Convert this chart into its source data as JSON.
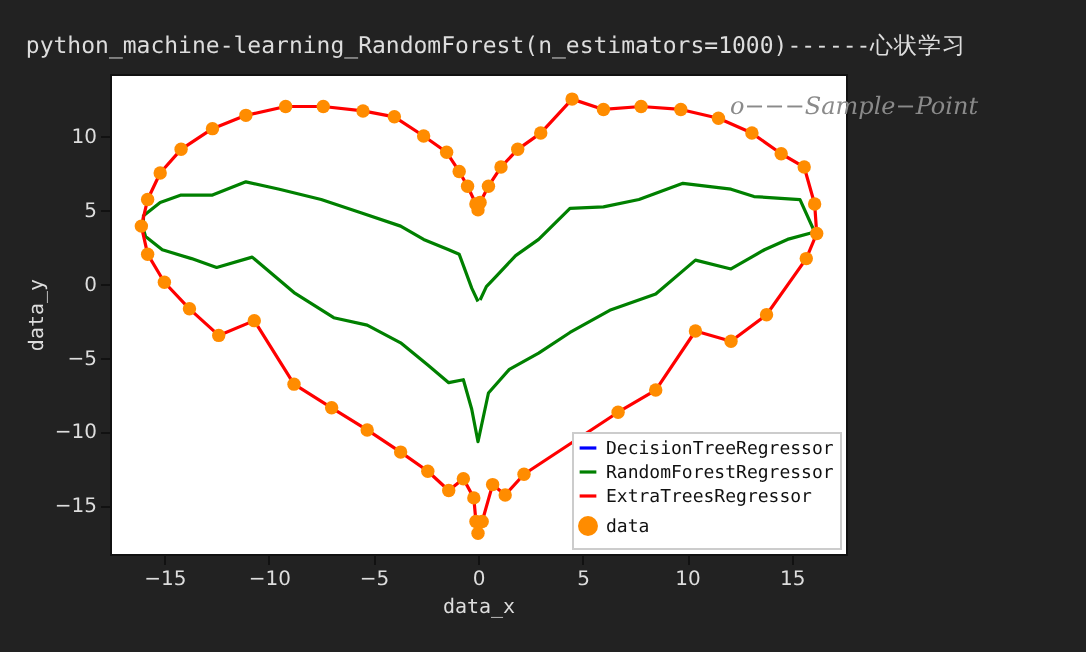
{
  "chart_data": {
    "type": "line",
    "title": "python_machine-learning_RandomForest(n_estimators=1000)------心状学习",
    "xlabel": "data_x",
    "ylabel": "data_y",
    "annotations": [
      "o−−−Sample−Point"
    ],
    "xlim": [
      -17.6,
      17.6
    ],
    "ylim": [
      -18.3,
      14.2
    ],
    "xticks": [
      -15,
      -10,
      -5,
      0,
      5,
      10,
      15
    ],
    "yticks": [
      -15,
      -10,
      -5,
      0,
      5,
      10
    ],
    "grid": false,
    "legend": "bottom right",
    "series": [
      {
        "name": "DecisionTreeRegressor",
        "type": "line",
        "color": "#0000ff",
        "values": [
          null,
          null
        ]
      },
      {
        "name": "RandomForestRegressor",
        "type": "line",
        "color": "#008000",
        "x": [
          0,
          -0.3,
          -0.9,
          -1.4,
          -2.6,
          -3.7,
          -5.6,
          -7.5,
          -9.5,
          -11.1,
          -12.7,
          -14.2,
          -15.2,
          -16,
          -16,
          -15.9,
          -15.1,
          -13.7,
          -12.5,
          -10.8,
          -8.8,
          -6.9,
          -5.3,
          -3.7,
          -2.4,
          -1.4,
          -0.7,
          -0.3,
          0,
          0.5,
          1.5,
          2.9,
          4.4,
          6.3,
          8.5,
          10.4,
          12.1,
          13.7,
          14.8,
          16.1,
          15.4,
          14.3,
          13.2,
          12.1,
          9.8,
          7.7,
          6,
          4.4,
          2.9,
          1.8,
          0.8,
          0.4,
          0.1
        ],
        "values": [
          -1.2,
          -0.3,
          2,
          2.3,
          3,
          3.9,
          4.8,
          5.7,
          6.4,
          6.9,
          6,
          6,
          5.5,
          4.6,
          3.7,
          3.2,
          2.3,
          1.7,
          1.1,
          1.8,
          -0.6,
          -2.3,
          -2.8,
          -4,
          -5.5,
          -6.7,
          -6.5,
          -8.5,
          -10.7,
          -7.4,
          -5.8,
          -4.7,
          -3.3,
          -1.8,
          -0.7,
          1.6,
          1,
          2.3,
          3,
          3.5,
          5.7,
          5.8,
          5.9,
          6.4,
          6.8,
          5.7,
          5.2,
          5.1,
          3,
          1.9,
          0.4,
          -0.2,
          -1.1
        ]
      },
      {
        "name": "ExtraTreesRegressor",
        "type": "line",
        "color": "#ff0000",
        "x": [
          -0.1,
          -0.5,
          -0.9,
          -1.5,
          -2.6,
          -4,
          -5.5,
          -7.4,
          -9.2,
          -11.1,
          -12.7,
          -14.2,
          -15.2,
          -15.8,
          -16.1,
          -15.8,
          -15,
          -13.8,
          -12.4,
          -10.7,
          -8.8,
          -7,
          -5.3,
          -3.7,
          -2.4,
          -1.4,
          -0.7,
          -0.2,
          -0.1,
          0,
          0.2,
          0.7,
          1.3,
          2.2,
          6.7,
          8.5,
          10.4,
          12.1,
          13.8,
          15.7,
          16.2,
          16.1,
          15.6,
          14.5,
          13.1,
          11.5,
          9.7,
          7.8,
          6,
          4.5,
          3,
          1.9,
          1.1,
          0.5,
          0.1,
          0
        ],
        "values": [
          5.4,
          6.6,
          7.6,
          8.9,
          10,
          11.3,
          11.7,
          12,
          12,
          11.4,
          10.5,
          9.1,
          7.5,
          5.7,
          3.9,
          2,
          0.1,
          -1.7,
          -3.5,
          -2.5,
          -6.8,
          -8.4,
          -9.9,
          -11.4,
          -12.7,
          -14,
          -13.2,
          -14.5,
          -16.1,
          -16.9,
          -16.1,
          -13.6,
          -14.3,
          -12.9,
          -8.7,
          -7.2,
          -3.2,
          -3.9,
          -2.1,
          1.7,
          3.4,
          5.4,
          7.9,
          8.8,
          10.2,
          11.2,
          11.8,
          12,
          11.8,
          12.5,
          10.2,
          9.1,
          7.9,
          6.6,
          5.5,
          5
        ]
      },
      {
        "name": "data",
        "type": "scatter",
        "marker": "circle",
        "color": "#ff8c00",
        "x": [
          -0.1,
          -0.5,
          -0.9,
          -1.5,
          -2.6,
          -4,
          -5.5,
          -7.4,
          -9.2,
          -11.1,
          -12.7,
          -14.2,
          -15.2,
          -15.8,
          -16.1,
          -15.8,
          -15,
          -13.8,
          -12.4,
          -10.7,
          -8.8,
          -7,
          -5.3,
          -3.7,
          -2.4,
          -1.4,
          -0.7,
          -0.2,
          -0.1,
          0,
          0.2,
          0.7,
          1.3,
          2.2,
          6.7,
          8.5,
          10.4,
          12.1,
          13.8,
          15.7,
          16.2,
          16.1,
          15.6,
          14.5,
          13.1,
          11.5,
          9.7,
          7.8,
          6,
          4.5,
          3,
          1.9,
          1.1,
          0.5,
          0.1,
          0
        ],
        "values": [
          5.4,
          6.6,
          7.6,
          8.9,
          10,
          11.3,
          11.7,
          12,
          12,
          11.4,
          10.5,
          9.1,
          7.5,
          5.7,
          3.9,
          2,
          0.1,
          -1.7,
          -3.5,
          -2.5,
          -6.8,
          -8.4,
          -9.9,
          -11.4,
          -12.7,
          -14,
          -13.2,
          -14.5,
          -16.1,
          -16.9,
          -16.1,
          -13.6,
          -14.3,
          -12.9,
          -8.7,
          -7.2,
          -3.2,
          -3.9,
          -2.1,
          1.7,
          3.4,
          5.4,
          7.9,
          8.8,
          10.2,
          11.2,
          11.8,
          12,
          11.8,
          12.5,
          10.2,
          9.1,
          7.9,
          6.6,
          5.5,
          5
        ]
      }
    ]
  }
}
